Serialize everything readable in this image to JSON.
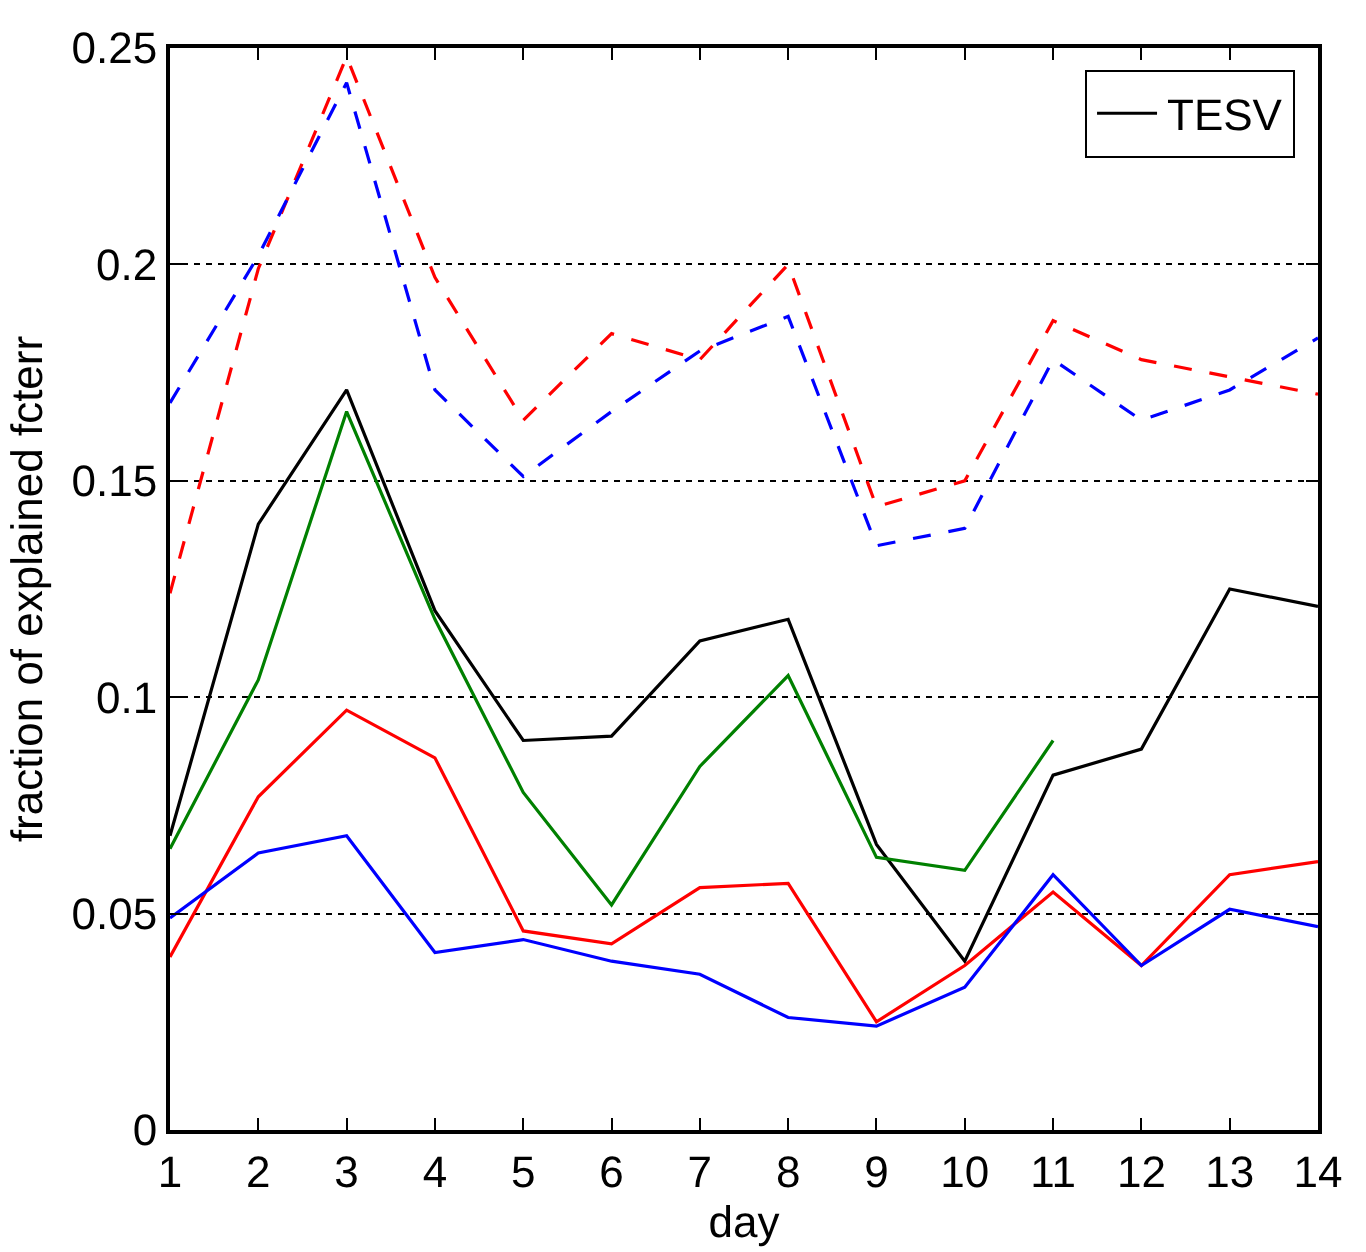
{
  "chart_data": {
    "type": "line",
    "xlabel": "day",
    "ylabel": "fraction of explained fcterr",
    "x": [
      1,
      2,
      3,
      4,
      5,
      6,
      7,
      8,
      9,
      10,
      11,
      12,
      13,
      14
    ],
    "xlim": [
      1,
      14
    ],
    "xticks": [
      1,
      2,
      3,
      4,
      5,
      6,
      7,
      8,
      9,
      10,
      11,
      12,
      13,
      14
    ],
    "ylim": [
      0,
      0.25
    ],
    "yticks": [
      0,
      0.05,
      0.1,
      0.15,
      0.2,
      0.25
    ],
    "grid": "y",
    "legend": "top right",
    "marker": "none",
    "series": [
      {
        "name": "TESV",
        "color": "#000000",
        "line_style": "solid",
        "values": [
          0.068,
          0.14,
          0.171,
          0.12,
          0.09,
          0.091,
          0.113,
          0.118,
          0.066,
          0.039,
          0.082,
          0.088,
          0.125,
          0.121
        ]
      },
      {
        "color": "#008000",
        "line_style": "solid",
        "values": [
          0.065,
          0.104,
          0.166,
          0.118,
          0.078,
          0.052,
          0.084,
          0.105,
          0.063,
          0.06,
          0.09,
          null,
          null,
          null
        ]
      },
      {
        "color": "#ff0000",
        "line_style": "solid",
        "values": [
          0.04,
          0.077,
          0.097,
          0.086,
          0.046,
          0.043,
          0.056,
          0.057,
          0.025,
          0.038,
          0.055,
          0.038,
          0.059,
          0.062
        ]
      },
      {
        "color": "#0000ff",
        "line_style": "solid",
        "values": [
          0.049,
          0.064,
          0.068,
          0.041,
          0.044,
          0.039,
          0.036,
          0.026,
          0.024,
          0.033,
          0.059,
          0.038,
          0.051,
          0.047
        ]
      },
      {
        "color": "#ff0000",
        "line_style": "dashed",
        "values": [
          0.124,
          0.199,
          0.248,
          0.197,
          0.164,
          0.184,
          0.178,
          0.2,
          0.144,
          0.15,
          0.187,
          0.178,
          0.174,
          0.17
        ]
      },
      {
        "color": "#0000ff",
        "line_style": "dashed",
        "values": [
          0.168,
          0.202,
          0.242,
          0.171,
          0.151,
          0.166,
          0.18,
          0.188,
          0.135,
          0.139,
          0.178,
          0.164,
          0.171,
          0.183
        ]
      }
    ]
  }
}
